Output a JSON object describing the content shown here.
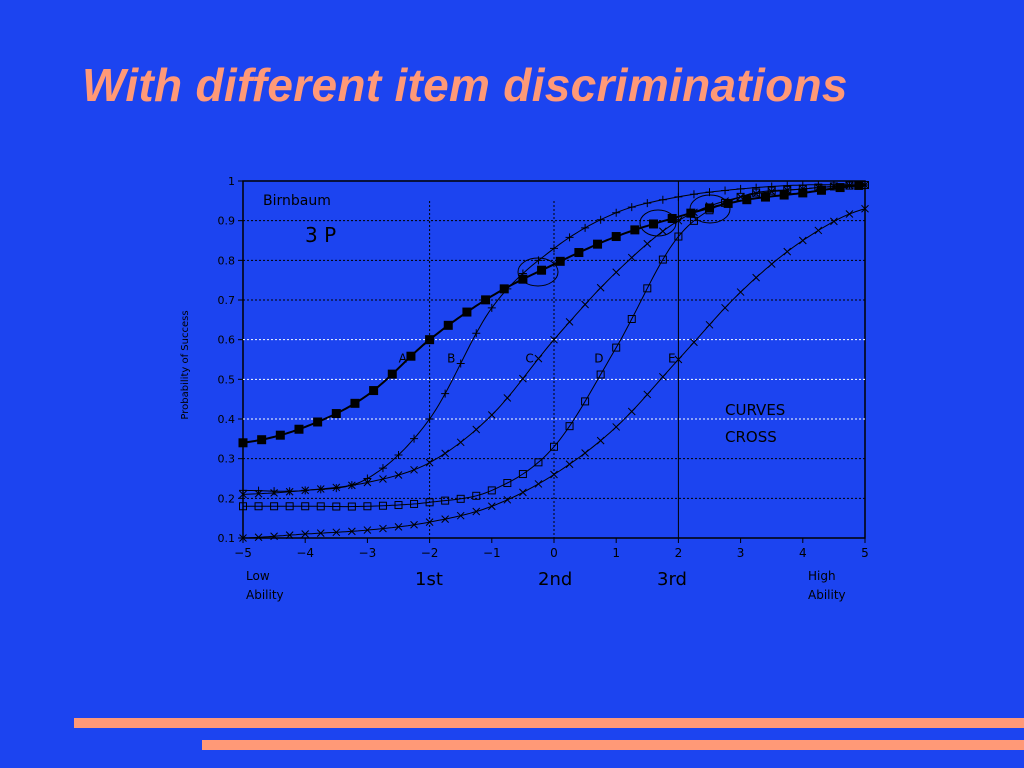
{
  "slide": {
    "title": "With different item discriminations"
  },
  "chart_data": {
    "type": "line",
    "annotations": {
      "model_line1": "Birnbaum",
      "model_line2": "3 P",
      "note_line1": "CURVES",
      "note_line2": "CROSS",
      "low_line1": "Low",
      "low_line2": "Ability",
      "high_line1": "High",
      "high_line2": "Ability",
      "marker_1st": "1st",
      "marker_2nd": "2nd",
      "marker_3rd": "3rd"
    },
    "ylabel": "Probability of Success",
    "xlim": [
      -5,
      5
    ],
    "ylim": [
      0.1,
      1
    ],
    "xticks": [
      "-5",
      "-4",
      "-3",
      "-2",
      "-1",
      "0",
      "1",
      "2",
      "3",
      "4",
      "5"
    ],
    "yticks": [
      "0.1",
      "0.2",
      "0.3",
      "0.4",
      "0.5",
      "0.6",
      "0.7",
      "0.8",
      "0.9",
      "1"
    ],
    "vertical_markers": [
      -2,
      0,
      2
    ],
    "series": [
      {
        "name": "A",
        "marker": "filled-square",
        "values": [
          [
            -5,
            0.34
          ],
          [
            -4,
            0.38
          ],
          [
            -3,
            0.46
          ],
          [
            -2,
            0.6
          ],
          [
            -1,
            0.71
          ],
          [
            0,
            0.79
          ],
          [
            1,
            0.86
          ],
          [
            2,
            0.91
          ],
          [
            3,
            0.95
          ],
          [
            4,
            0.97
          ],
          [
            5,
            0.99
          ]
        ]
      },
      {
        "name": "B",
        "marker": "plus",
        "values": [
          [
            -5,
            0.22
          ],
          [
            -4,
            0.22
          ],
          [
            -3,
            0.25
          ],
          [
            -2,
            0.4
          ],
          [
            -1,
            0.68
          ],
          [
            0,
            0.83
          ],
          [
            1,
            0.92
          ],
          [
            2,
            0.96
          ],
          [
            3,
            0.98
          ],
          [
            4,
            0.99
          ],
          [
            5,
            0.99
          ]
        ]
      },
      {
        "name": "C",
        "marker": "cross",
        "values": [
          [
            -5,
            0.21
          ],
          [
            -4,
            0.22
          ],
          [
            -3,
            0.24
          ],
          [
            -2,
            0.29
          ],
          [
            -1,
            0.41
          ],
          [
            0,
            0.6
          ],
          [
            1,
            0.77
          ],
          [
            2,
            0.9
          ],
          [
            3,
            0.96
          ],
          [
            4,
            0.98
          ],
          [
            5,
            0.99
          ]
        ]
      },
      {
        "name": "D",
        "marker": "open-square",
        "values": [
          [
            -5,
            0.18
          ],
          [
            -4,
            0.18
          ],
          [
            -3,
            0.18
          ],
          [
            -2,
            0.19
          ],
          [
            -1,
            0.22
          ],
          [
            0,
            0.33
          ],
          [
            1,
            0.58
          ],
          [
            2,
            0.86
          ],
          [
            3,
            0.96
          ],
          [
            4,
            0.98
          ],
          [
            5,
            0.99
          ]
        ]
      },
      {
        "name": "E",
        "marker": "x",
        "values": [
          [
            -5,
            0.1
          ],
          [
            -4,
            0.11
          ],
          [
            -3,
            0.12
          ],
          [
            -2,
            0.14
          ],
          [
            -1,
            0.18
          ],
          [
            0,
            0.26
          ],
          [
            1,
            0.38
          ],
          [
            2,
            0.55
          ],
          [
            3,
            0.72
          ],
          [
            4,
            0.85
          ],
          [
            5,
            0.93
          ]
        ]
      }
    ]
  }
}
